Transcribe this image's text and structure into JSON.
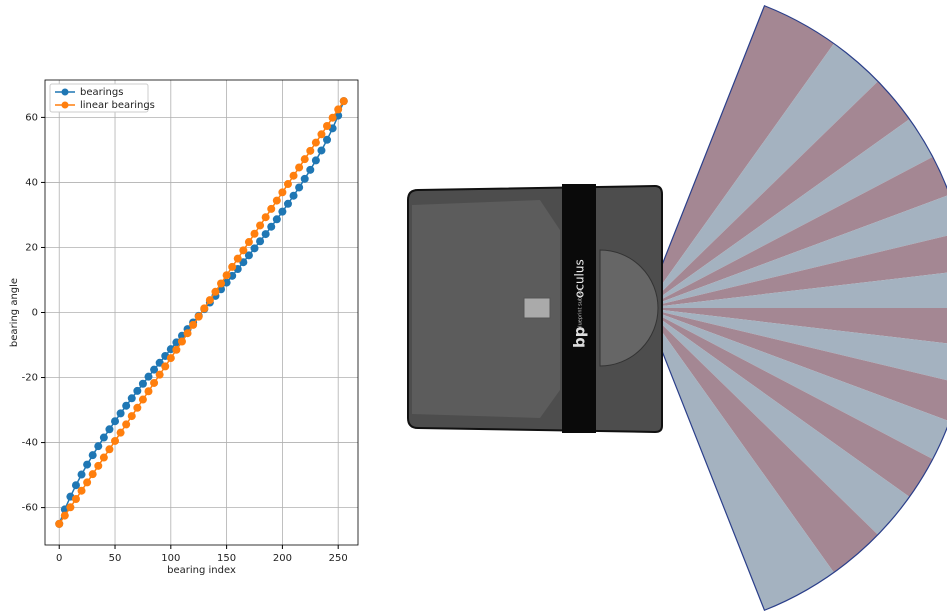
{
  "chart_data": {
    "type": "line",
    "xlabel": "bearing index",
    "ylabel": "bearing angle",
    "x": [
      0,
      5,
      10,
      15,
      20,
      25,
      30,
      35,
      40,
      45,
      50,
      55,
      60,
      65,
      70,
      75,
      80,
      85,
      90,
      95,
      100,
      105,
      110,
      115,
      120,
      125,
      130,
      135,
      140,
      145,
      150,
      155,
      160,
      165,
      170,
      175,
      180,
      185,
      190,
      195,
      200,
      205,
      210,
      215,
      220,
      225,
      230,
      235,
      240,
      245,
      250,
      255
    ],
    "series": [
      {
        "name": "bearings",
        "color": "#1f77b4",
        "values": [
          -65,
          -60.55,
          -56.64,
          -53.11,
          -49.83,
          -46.77,
          -43.88,
          -41.11,
          -38.46,
          -35.91,
          -33.43,
          -31.02,
          -28.67,
          -26.38,
          -24.12,
          -21.91,
          -19.73,
          -17.58,
          -15.46,
          -13.36,
          -11.27,
          -9.2,
          -7.15,
          -5.1,
          -3.06,
          -1.02,
          1.02,
          3.06,
          5.1,
          7.15,
          9.2,
          11.27,
          13.36,
          15.46,
          17.58,
          19.73,
          21.91,
          24.12,
          26.38,
          28.67,
          31.02,
          33.43,
          35.91,
          38.46,
          41.11,
          43.88,
          46.77,
          49.83,
          53.11,
          56.64,
          60.55,
          65
        ]
      },
      {
        "name": "linear bearings",
        "color": "#ff7f0e",
        "values": [
          -65,
          -62.45,
          -59.9,
          -57.35,
          -54.8,
          -52.25,
          -49.71,
          -47.16,
          -44.61,
          -42.06,
          -39.51,
          -36.96,
          -34.41,
          -31.86,
          -29.31,
          -26.76,
          -24.22,
          -21.67,
          -19.12,
          -16.57,
          -14.02,
          -11.47,
          -8.92,
          -6.37,
          -3.82,
          -1.27,
          1.27,
          3.82,
          6.37,
          8.92,
          11.47,
          14.02,
          16.57,
          19.12,
          21.67,
          24.22,
          26.76,
          29.31,
          31.86,
          34.41,
          36.96,
          39.51,
          42.06,
          44.61,
          47.16,
          49.71,
          52.25,
          54.8,
          57.35,
          59.9,
          62.45,
          65
        ]
      }
    ],
    "xlim": [
      -12.75,
      267.75
    ],
    "ylim": [
      -71.5,
      71.5
    ],
    "xticks": [
      0,
      50,
      100,
      150,
      200,
      250
    ],
    "yticks": [
      -60,
      -40,
      -20,
      0,
      20,
      40,
      60
    ],
    "grid": true,
    "legend": "upper left"
  },
  "device": {
    "logo": "bp",
    "maker": "blueprint subsea",
    "brand": "oculus"
  }
}
